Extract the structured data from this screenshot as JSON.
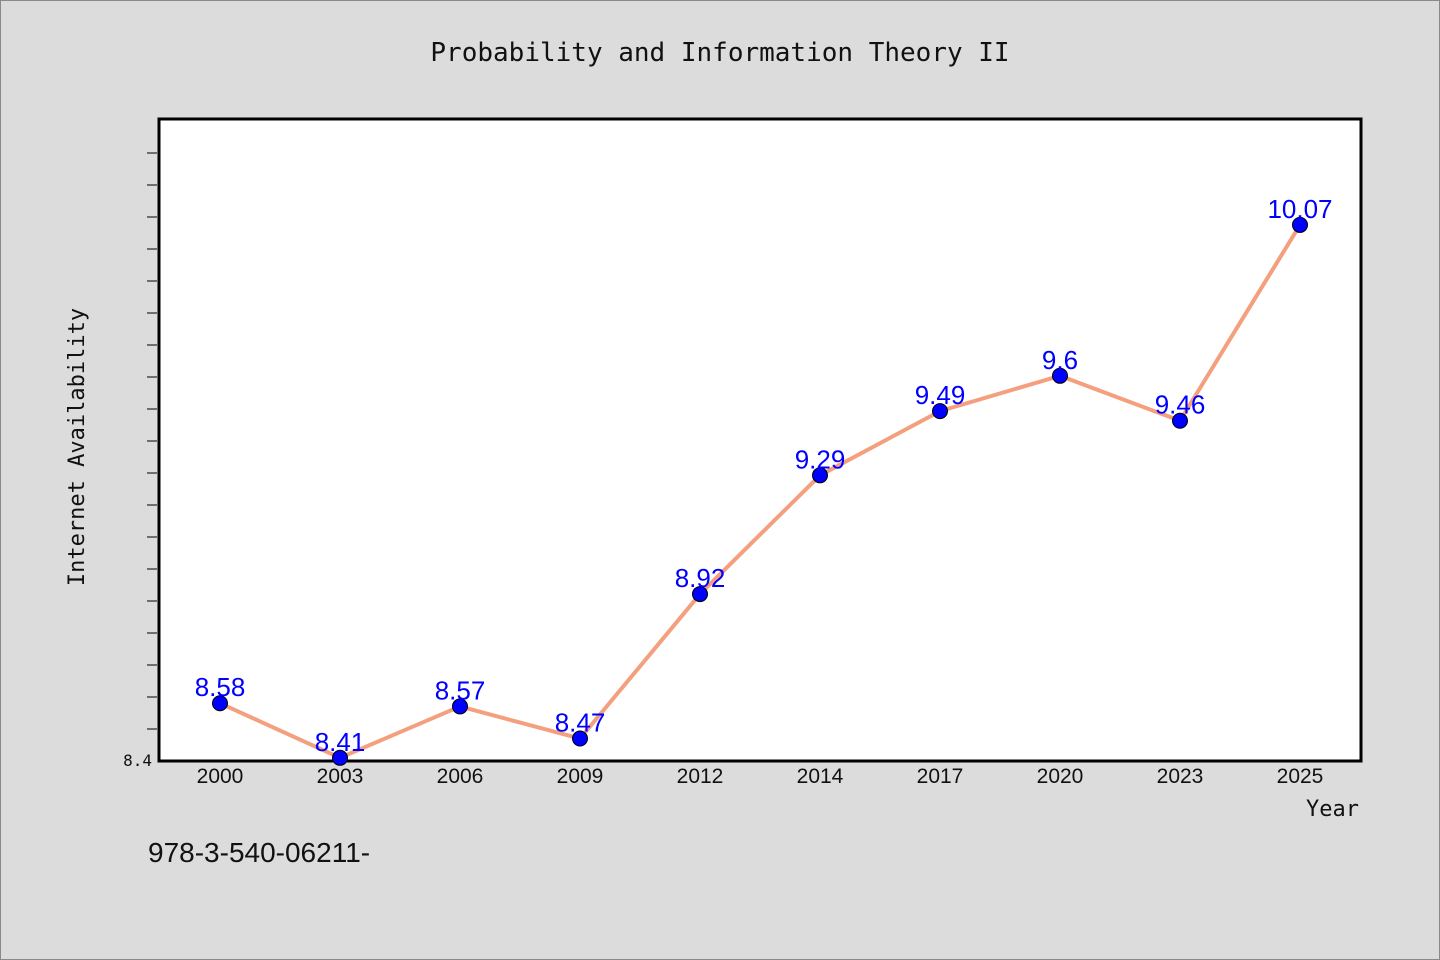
{
  "chart_data": {
    "type": "line",
    "title": "Probability and Information Theory II",
    "xlabel": "Year",
    "ylabel": "Internet Availability",
    "categories": [
      "2000",
      "2003",
      "2006",
      "2009",
      "2012",
      "2014",
      "2017",
      "2020",
      "2023",
      "2025"
    ],
    "values": [
      8.58,
      8.41,
      8.57,
      8.47,
      8.92,
      9.29,
      9.49,
      9.6,
      9.46,
      10.07
    ],
    "value_labels": [
      "8.58",
      "8.41",
      "8.57",
      "8.47",
      "8.92",
      "9.29",
      "9.49",
      "9.6",
      "9.46",
      "10.07"
    ],
    "ylim": [
      8.4,
      10.4
    ],
    "ytick_labels": [
      "8.4"
    ],
    "grid": false,
    "colors": {
      "line": "#f4a07e",
      "marker": "#0000ff",
      "data_label": "#0000ff"
    }
  },
  "footer_text": "978-3-540-06211-"
}
